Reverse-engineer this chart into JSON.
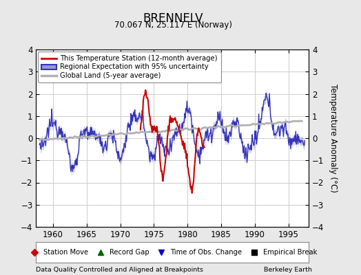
{
  "title": "BRENNELV",
  "subtitle": "70.067 N, 25.117 E (Norway)",
  "ylabel": "Temperature Anomaly (°C)",
  "xlim": [
    1957.5,
    1998.0
  ],
  "ylim": [
    -4,
    4
  ],
  "yticks": [
    -4,
    -3,
    -2,
    -1,
    0,
    1,
    2,
    3,
    4
  ],
  "xticks": [
    1960,
    1965,
    1970,
    1975,
    1980,
    1985,
    1990,
    1995
  ],
  "footer_left": "Data Quality Controlled and Aligned at Breakpoints",
  "footer_right": "Berkeley Earth",
  "bg_color": "#e8e8e8",
  "plot_bg_color": "#ffffff",
  "regional_color": "#3333bb",
  "regional_fill_color": "#9999cc",
  "station_color": "#cc0000",
  "global_color": "#b0b0b0",
  "grid_color": "#cccccc",
  "legend_labels": [
    "This Temperature Station (12-month average)",
    "Regional Expectation with 95% uncertainty",
    "Global Land (5-year average)"
  ],
  "bottom_legend_items": [
    {
      "label": "Station Move",
      "color": "#cc0000",
      "marker": "D"
    },
    {
      "label": "Record Gap",
      "color": "#006600",
      "marker": "^"
    },
    {
      "label": "Time of Obs. Change",
      "color": "#0000cc",
      "marker": "v"
    },
    {
      "label": "Empirical Break",
      "color": "#000000",
      "marker": "s"
    }
  ]
}
